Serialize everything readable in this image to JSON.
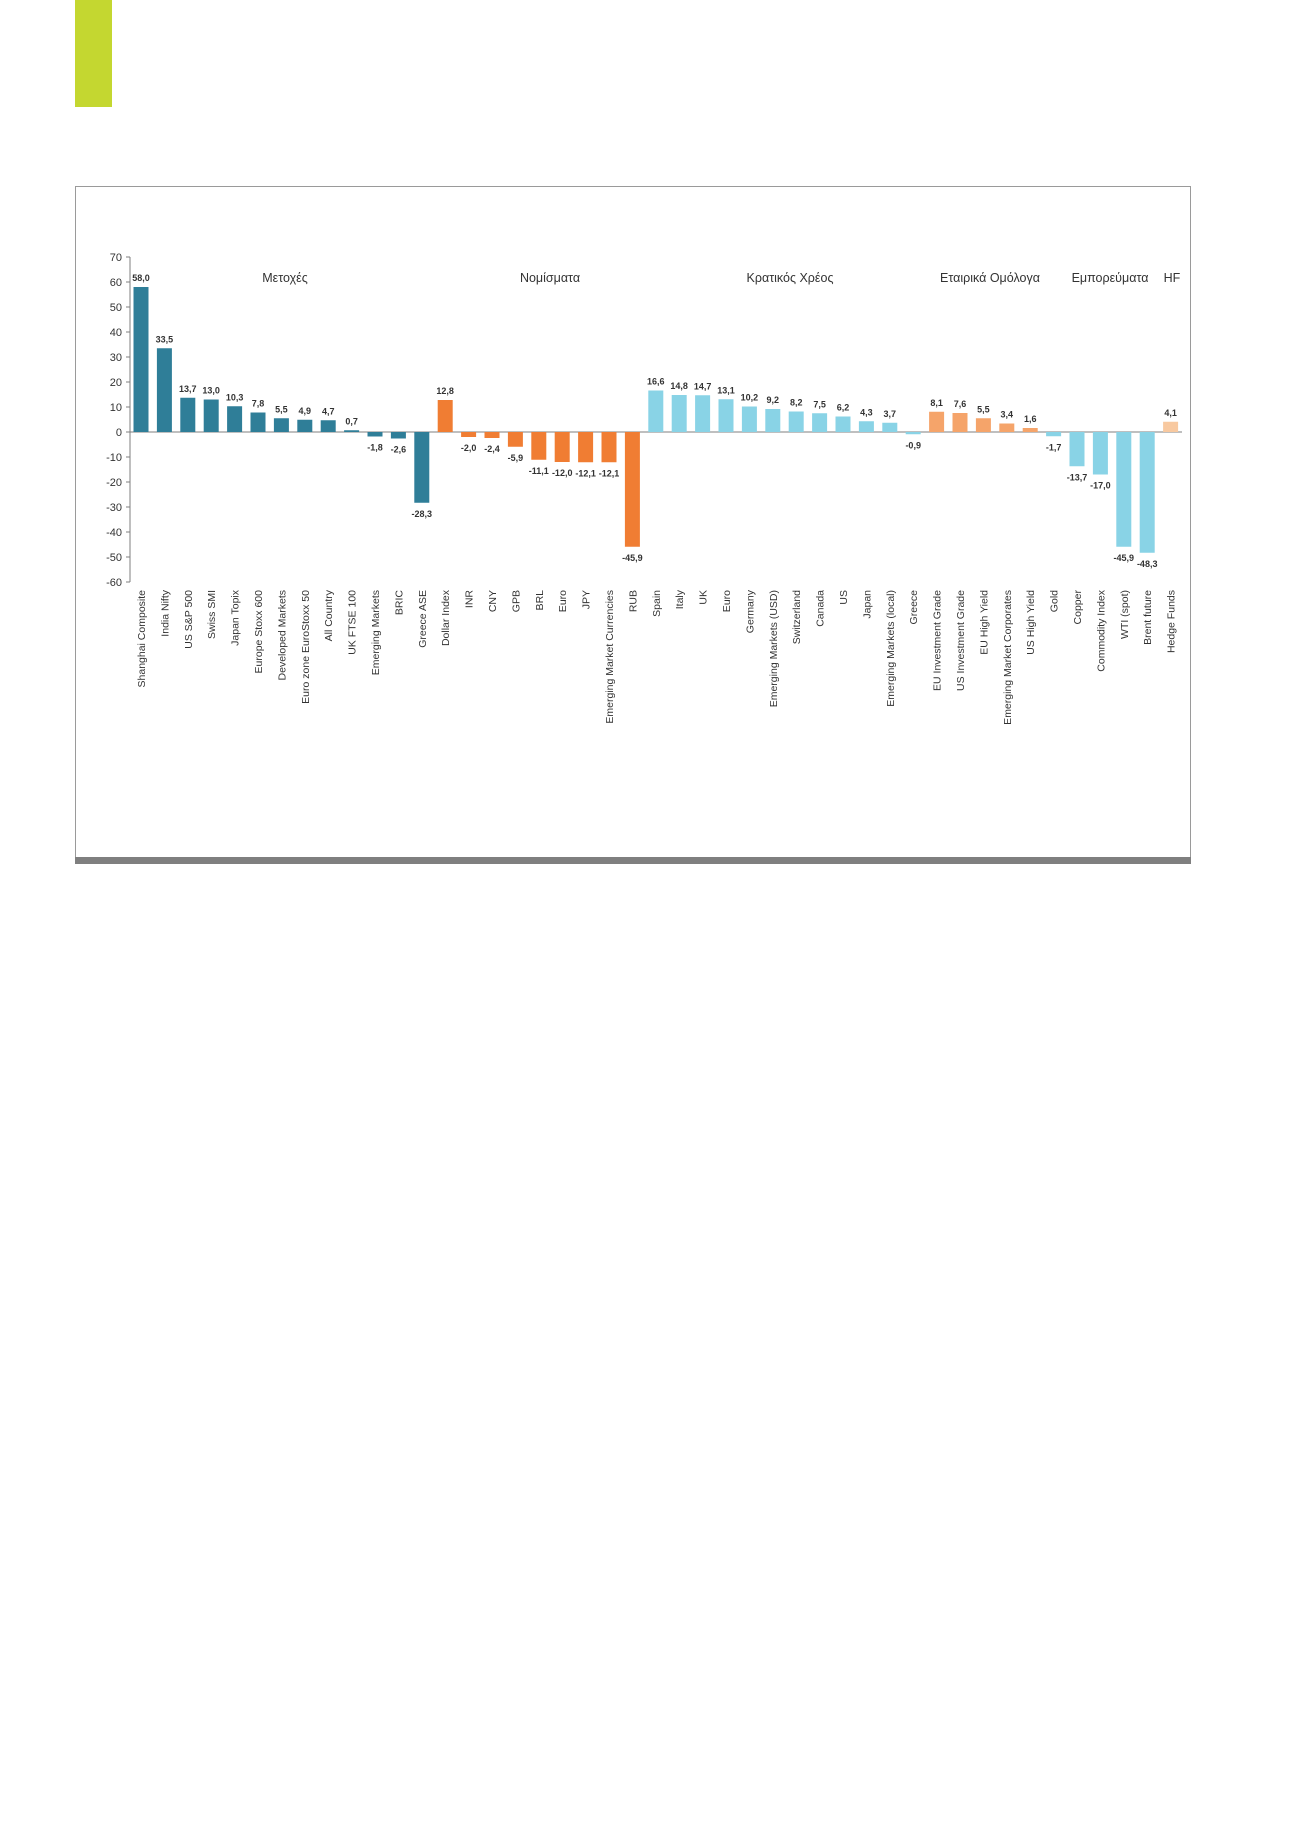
{
  "colors": {
    "accent": "#c4d730",
    "equities": "#2f7e98",
    "currencies": "#f07d33",
    "govt_debt": "#89d3e6",
    "corporate_bonds": "#f5a46a",
    "hedge_funds": "#f8c9a0",
    "axis": "#7f7f7f",
    "label_text": "#333333"
  },
  "chart_data": {
    "type": "bar",
    "ylim": [
      -60,
      70
    ],
    "yticks": [
      70,
      60,
      50,
      40,
      30,
      20,
      10,
      0,
      -10,
      -20,
      -30,
      -40,
      -50,
      -60
    ],
    "grid": false,
    "legend": "none",
    "groups": [
      {
        "label": "Μετοχές",
        "color": "equities",
        "start": 0,
        "end": 12
      },
      {
        "label": "Νομίσματα",
        "color": "currencies",
        "start": 13,
        "end": 21
      },
      {
        "label": "Κρατικός Χρέος",
        "color": "govt_debt",
        "start": 22,
        "end": 33
      },
      {
        "label": "Εταιρικά Ομόλογα",
        "color": "corporate_bonds",
        "start": 34,
        "end": 38
      },
      {
        "label": "Εμπορεύματα",
        "color": "govt_debt",
        "start": 39,
        "end": 43
      },
      {
        "label": "HF",
        "color": "hedge_funds",
        "start": 44,
        "end": 44
      }
    ],
    "categories": [
      "Shanghai Composite",
      "India Nifty",
      "US S&P 500",
      "Swiss SMI",
      "Japan Topix",
      "Europe Stoxx 600",
      "Developed Markets",
      "Euro zone EuroStoxx 50",
      "All Country",
      "UK FTSE 100",
      "Emerging Markets",
      "BRIC",
      "Greece ASE",
      "Dollar Index",
      "INR",
      "CNY",
      "GPB",
      "BRL",
      "Euro",
      "JPY",
      "Emerging Market Currencies",
      "RUB",
      "Spain",
      "Italy",
      "UK",
      "Euro",
      "Germany",
      "Emerging Markets (USD)",
      "Switzerland",
      "Canada",
      "US",
      "Japan",
      "Emerging Markets (local)",
      "Greece",
      "EU Investment Grade",
      "US Investment Grade",
      "EU High Yield",
      "Emerging Market Corporates",
      "US High Yield",
      "Gold",
      "Copper",
      "Commodity Index",
      "WTI (spot)",
      "Brent future",
      "Hedge Funds"
    ],
    "values": [
      58.0,
      33.5,
      13.7,
      13.0,
      10.3,
      7.8,
      5.5,
      4.9,
      4.7,
      0.7,
      -1.8,
      -2.6,
      -28.3,
      12.8,
      -2.0,
      -2.4,
      -5.9,
      -11.1,
      -12.0,
      -12.1,
      -12.1,
      -45.9,
      16.6,
      14.8,
      14.7,
      13.1,
      10.2,
      9.2,
      8.2,
      7.5,
      6.2,
      4.3,
      3.7,
      -0.9,
      8.1,
      7.6,
      5.5,
      3.4,
      1.6,
      -1.7,
      -13.7,
      -17.0,
      -45.9,
      -48.3,
      4.1
    ],
    "labels": [
      "58,0",
      "33,5",
      "13,7",
      "13,0",
      "10,3",
      "7,8",
      "5,5",
      "4,9",
      "4,7",
      "0,7",
      "-1,8",
      "-2,6",
      "-28,3",
      "12,8",
      "-2,0",
      "-2,4",
      "-5,9",
      "-11,1",
      "-12,0",
      "-12,1",
      "-12,1",
      "-45,9",
      "16,6",
      "14,8",
      "14,7",
      "13,1",
      "10,2",
      "9,2",
      "8,2",
      "7,5",
      "6,2",
      "4,3",
      "3,7",
      "-0,9",
      "8,1",
      "7,6",
      "5,5",
      "3,4",
      "1,6",
      "-1,7",
      "-13,7",
      "-17,0",
      "-45,9",
      "-48,3",
      "4,1"
    ]
  }
}
